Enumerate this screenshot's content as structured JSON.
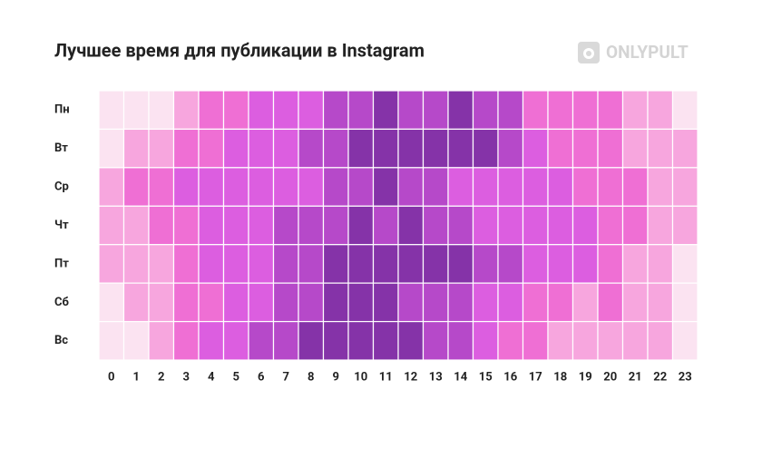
{
  "brand": "ONLYPULT",
  "chart_data": {
    "type": "heatmap",
    "title": "Лучшее время для публикации в Instagram",
    "x": [
      "0",
      "1",
      "2",
      "3",
      "4",
      "5",
      "6",
      "7",
      "8",
      "9",
      "10",
      "11",
      "12",
      "13",
      "14",
      "15",
      "16",
      "17",
      "18",
      "19",
      "20",
      "21",
      "22",
      "23"
    ],
    "categories": [
      "Пн",
      "Вт",
      "Ср",
      "Чт",
      "Пт",
      "Сб",
      "Вс"
    ],
    "colors": [
      "#fbe3f1",
      "#f7a6de",
      "#ef6fd4",
      "#dc5ee0",
      "#b649c9",
      "#8533a8"
    ],
    "values": [
      [
        0,
        0,
        0,
        1,
        2,
        2,
        3,
        3,
        3,
        4,
        4,
        5,
        4,
        4,
        5,
        4,
        4,
        2,
        2,
        2,
        2,
        1,
        1,
        0
      ],
      [
        0,
        1,
        1,
        2,
        2,
        3,
        3,
        3,
        4,
        4,
        5,
        5,
        5,
        5,
        5,
        5,
        4,
        3,
        2,
        2,
        2,
        1,
        1,
        1
      ],
      [
        1,
        2,
        2,
        3,
        3,
        3,
        3,
        3,
        3,
        4,
        4,
        5,
        4,
        4,
        3,
        3,
        3,
        3,
        3,
        2,
        2,
        2,
        1,
        1
      ],
      [
        1,
        1,
        2,
        2,
        3,
        3,
        3,
        4,
        4,
        4,
        5,
        4,
        5,
        4,
        4,
        3,
        3,
        3,
        3,
        3,
        2,
        2,
        1,
        1
      ],
      [
        1,
        1,
        1,
        2,
        3,
        3,
        3,
        4,
        4,
        5,
        5,
        5,
        5,
        5,
        5,
        4,
        4,
        3,
        3,
        3,
        2,
        1,
        1,
        0
      ],
      [
        0,
        1,
        1,
        2,
        2,
        3,
        3,
        4,
        4,
        5,
        5,
        5,
        4,
        4,
        4,
        3,
        3,
        2,
        2,
        1,
        2,
        1,
        1,
        0
      ],
      [
        0,
        0,
        1,
        2,
        3,
        3,
        4,
        4,
        5,
        5,
        5,
        5,
        5,
        4,
        4,
        3,
        2,
        2,
        1,
        1,
        1,
        1,
        1,
        0
      ]
    ]
  }
}
